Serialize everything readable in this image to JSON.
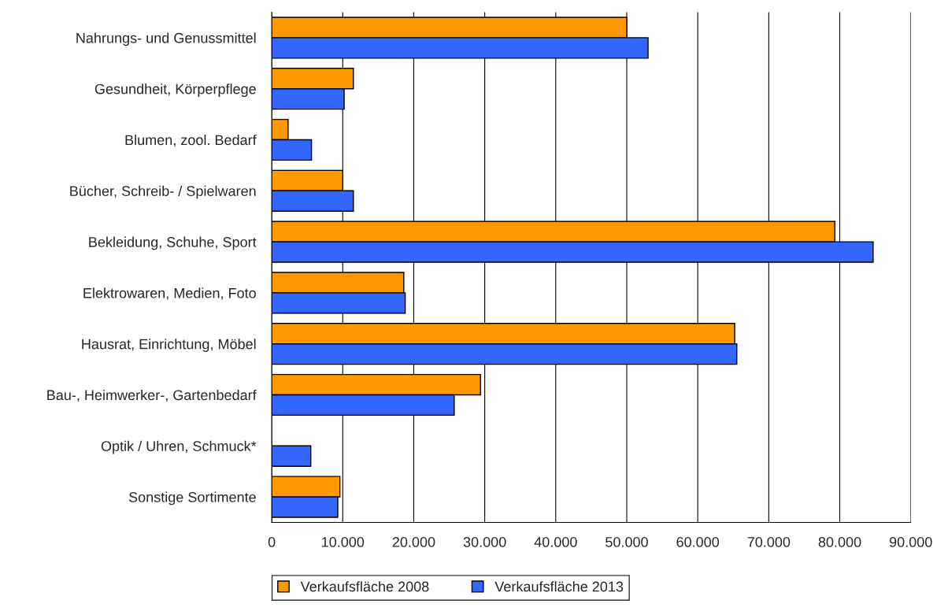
{
  "chart_data": {
    "type": "bar",
    "orientation": "horizontal",
    "categories": [
      "Nahrungs- und Genussmittel",
      "Gesundheit, Körperpflege",
      "Blumen, zool. Bedarf",
      "Bücher, Schreib- / Spielwaren",
      "Bekleidung, Schuhe, Sport",
      "Elektrowaren, Medien, Foto",
      "Hausrat, Einrichtung, Möbel",
      "Bau-, Heimwerker-, Gartenbedarf",
      "Optik / Uhren, Schmuck*",
      "Sonstige Sortimente"
    ],
    "series": [
      {
        "name": "Verkaufsfläche 2008",
        "color": "#ff9900",
        "values": [
          50000,
          11500,
          2300,
          10000,
          79300,
          18600,
          65200,
          29400,
          null,
          9600
        ]
      },
      {
        "name": "Verkaufsfläche 2013",
        "color": "#3366ff",
        "values": [
          53000,
          10200,
          5600,
          11500,
          84700,
          18800,
          65500,
          25700,
          5500,
          9300
        ]
      }
    ],
    "xlim": [
      0,
      90000
    ],
    "xticks": [
      0,
      {
        "value": 10000,
        "label": "10.000"
      },
      {
        "value": 20000,
        "label": "20.000"
      },
      {
        "value": 30000,
        "label": "30.000"
      },
      {
        "value": 40000,
        "label": "40.000"
      },
      {
        "value": 50000,
        "label": "50.000"
      },
      {
        "value": 60000,
        "label": "60.000"
      },
      {
        "value": 70000,
        "label": "70.000"
      },
      {
        "value": 80000,
        "label": "80.000"
      },
      {
        "value": 90000,
        "label": "90.000"
      }
    ],
    "grid": "x",
    "legend": "bottom"
  }
}
